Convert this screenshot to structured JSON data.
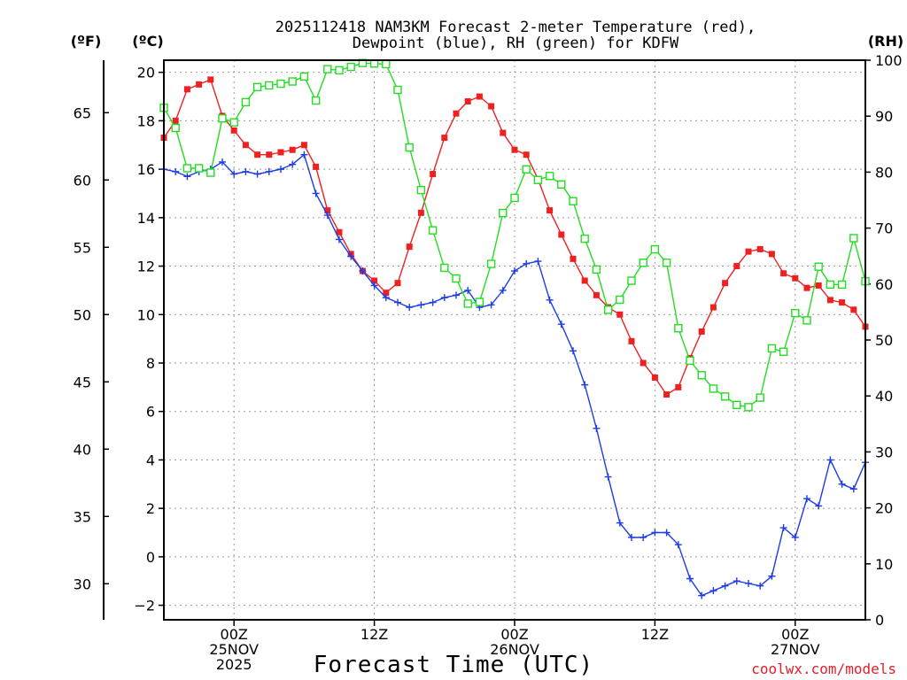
{
  "chart_data": {
    "type": "line",
    "title_lines": [
      "2025112418 NAM3KM Forecast 2-meter Temperature (red),",
      "Dewpoint (blue), RH (green) for KDFW"
    ],
    "xlabel": "Forecast Time (UTC)",
    "credit": "coolwx.com/models",
    "x_unit": "forecast hour",
    "x_range": [
      0,
      60
    ],
    "x_ticks": [
      {
        "hour": 6,
        "lines": [
          "00Z",
          "25NOV",
          "2025"
        ]
      },
      {
        "hour": 18,
        "lines": [
          "12Z"
        ]
      },
      {
        "hour": 30,
        "lines": [
          "00Z",
          "26NOV"
        ]
      },
      {
        "hour": 42,
        "lines": [
          "12Z"
        ]
      },
      {
        "hour": 54,
        "lines": [
          "00Z",
          "27NOV"
        ]
      }
    ],
    "axes": {
      "celsius": {
        "unit_label": "(ºC)",
        "range": [
          -2.6,
          20.5
        ],
        "ticks": [
          -2,
          0,
          2,
          4,
          6,
          8,
          10,
          12,
          14,
          16,
          18,
          20
        ]
      },
      "fahrenheit": {
        "unit_label": "(ºF)",
        "ticks": [
          30,
          35,
          40,
          45,
          50,
          55,
          60,
          65
        ]
      },
      "rh": {
        "unit_label": "(RH)",
        "range": [
          0,
          100
        ],
        "ticks": [
          0,
          10,
          20,
          30,
          40,
          50,
          60,
          70,
          80,
          90,
          100
        ]
      }
    },
    "series": [
      {
        "name": "2-meter Temperature",
        "axis": "celsius",
        "color": "#ee2020",
        "marker": "filled-square",
        "values": [
          17.3,
          18,
          19.3,
          19.5,
          19.7,
          18.2,
          17.6,
          17,
          16.6,
          16.6,
          16.7,
          16.8,
          17,
          16.1,
          14.3,
          13.4,
          12.5,
          11.8,
          11.4,
          10.9,
          11.3,
          12.8,
          14.2,
          15.8,
          17.3,
          18.3,
          18.8,
          19,
          18.6,
          17.5,
          16.8,
          16.6,
          15.6,
          14.3,
          13.3,
          12.3,
          11.4,
          10.8,
          10.3,
          10,
          8.9,
          8,
          7.4,
          6.7,
          7,
          8.2,
          9.3,
          10.3,
          11.3,
          12,
          12.6,
          12.7,
          12.5,
          11.7,
          11.5,
          11.1,
          11.2,
          10.6,
          10.5,
          10.2,
          9.5
        ]
      },
      {
        "name": "Dewpoint",
        "axis": "celsius",
        "color": "#1c3ce8",
        "marker": "plus",
        "values": [
          16,
          15.9,
          15.7,
          15.9,
          16,
          16.3,
          15.8,
          15.9,
          15.8,
          15.9,
          16,
          16.2,
          16.6,
          15,
          14.1,
          13.1,
          12.4,
          11.8,
          11.2,
          10.7,
          10.5,
          10.3,
          10.4,
          10.5,
          10.7,
          10.8,
          11,
          10.3,
          10.4,
          11,
          11.8,
          12.1,
          12.2,
          10.6,
          9.6,
          8.5,
          7.1,
          5.3,
          3.3,
          1.4,
          0.8,
          0.8,
          1,
          1,
          0.5,
          -0.9,
          -1.6,
          -1.4,
          -1.2,
          -1,
          -1.1,
          -1.2,
          -0.8,
          1.2,
          0.8,
          2.4,
          2.1,
          4,
          3,
          2.8,
          3.9
        ]
      },
      {
        "name": "RH",
        "axis": "rh",
        "color": "#22dd22",
        "marker": "open-square",
        "values": [
          91.5,
          87.9,
          80.7,
          80.7,
          79.9,
          89.6,
          88.9,
          92.5,
          95.2,
          95.5,
          95.8,
          96.2,
          97.1,
          92.8,
          98.4,
          98.2,
          98.8,
          99.5,
          99.4,
          99.3,
          94.7,
          84.4,
          76.8,
          69.6,
          62.9,
          61,
          56.5,
          56.8,
          63.6,
          72.7,
          75.4,
          80.5,
          78.6,
          79.3,
          77.8,
          74.8,
          68.1,
          62.6,
          55.4,
          57.2,
          60.6,
          63.8,
          66.2,
          63.8,
          52.1,
          46.3,
          43.7,
          41.3,
          39.9,
          38.4,
          38,
          39.7,
          48.5,
          47.9,
          54.8,
          53.5,
          63.1,
          59.9,
          59.9,
          68.2,
          60.5
        ]
      }
    ]
  }
}
